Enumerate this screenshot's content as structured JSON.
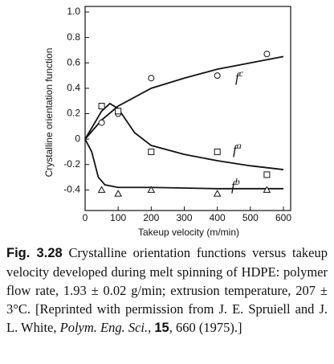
{
  "chart_data": {
    "type": "scatter-fit",
    "xlabel": "Takeup velocity (m/min)",
    "ylabel": "Crystalline orientation function",
    "xlim": [
      0,
      600
    ],
    "xticks": [
      0,
      100,
      200,
      300,
      400,
      500,
      600
    ],
    "ylim": [
      -0.6,
      1.0
    ],
    "yticks": [
      -0.4,
      -0.2,
      0,
      0.2,
      0.4,
      0.6,
      0.8,
      {
        "value": 1,
        "label": "1.0"
      }
    ],
    "series": [
      {
        "name": "f",
        "superscript": "c",
        "marker": "circle",
        "color": "#111",
        "x": [
          50,
          100,
          200,
          400,
          550
        ],
        "values": [
          0.13,
          0.2,
          0.48,
          0.5,
          0.67
        ],
        "fit_x": [
          0,
          50,
          100,
          200,
          300,
          400,
          500,
          600
        ],
        "fit_values": [
          0,
          0.15,
          0.26,
          0.4,
          0.48,
          0.55,
          0.6,
          0.65
        ]
      },
      {
        "name": "f",
        "superscript": "a",
        "marker": "square",
        "color": "#111",
        "x": [
          50,
          100,
          200,
          400,
          550
        ],
        "values": [
          0.26,
          0.22,
          -0.1,
          -0.1,
          -0.28
        ],
        "fit_x": [
          0,
          50,
          75,
          100,
          150,
          200,
          300,
          400,
          500,
          600
        ],
        "fit_values": [
          0,
          0.22,
          0.28,
          0.24,
          0.05,
          -0.05,
          -0.12,
          -0.17,
          -0.21,
          -0.24
        ]
      },
      {
        "name": "f",
        "superscript": "b",
        "marker": "triangle",
        "color": "#111",
        "x": [
          50,
          100,
          200,
          400,
          550
        ],
        "values": [
          -0.4,
          -0.43,
          -0.4,
          -0.43,
          -0.4
        ],
        "fit_x": [
          0,
          20,
          40,
          60,
          100,
          200,
          400,
          600
        ],
        "fit_values": [
          0,
          -0.1,
          -0.3,
          -0.36,
          -0.38,
          -0.38,
          -0.39,
          -0.39
        ]
      }
    ]
  },
  "caption": {
    "label": "Fig. 3.28",
    "text": "Crystalline orientation functions versus takeup velocity developed during melt spinning of HDPE: polymer flow rate, 1.93 ± 0.02 g/min; extrusion temperature, 207 ± 3°C. [Reprinted with permission from J. E. Spruiell and J. L. White,",
    "journal": "Polym. Eng. Sci.,",
    "volume": "15",
    "tail": ", 660 (1975).]"
  }
}
